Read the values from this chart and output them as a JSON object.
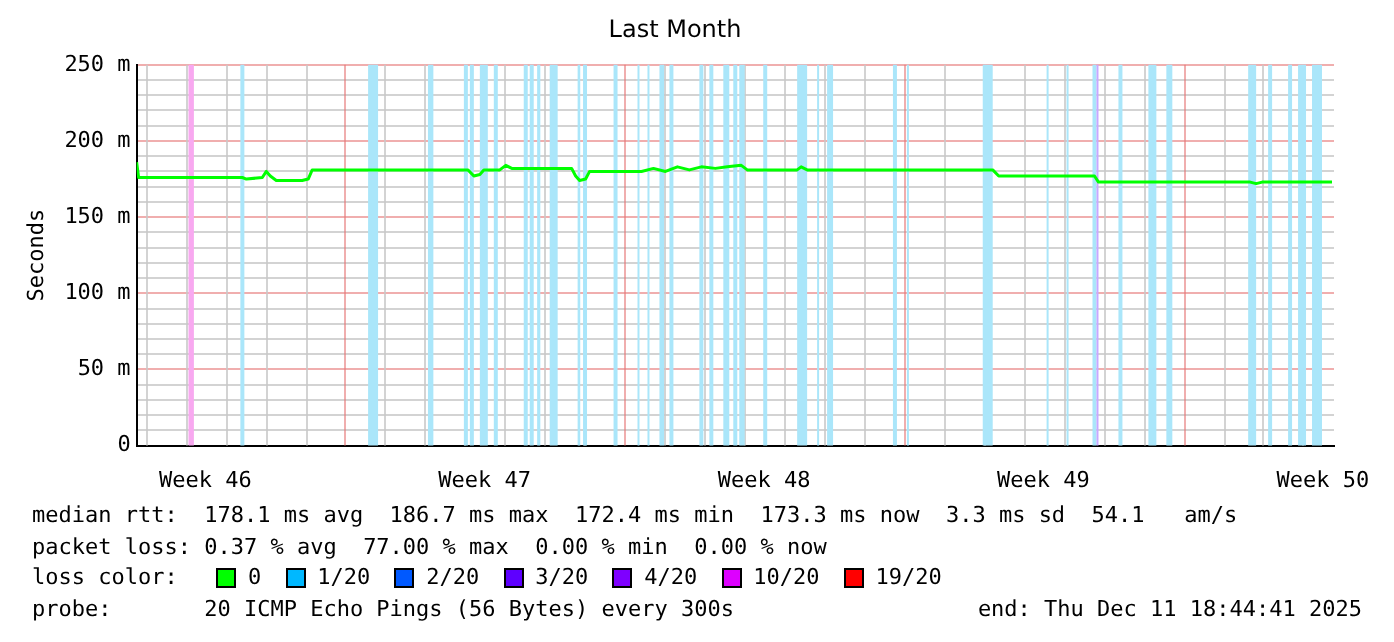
{
  "chart_data": {
    "type": "line",
    "title": "Last Month",
    "ylabel": "Seconds",
    "legend_title": "loss color:",
    "legend": "bottom",
    "grid": true,
    "marker": "none",
    "line_style": "solid",
    "xlim": [
      "2025-11-11T18:44",
      "2025-12-11T18:44"
    ],
    "xticks": [
      {
        "value": "2025-11-13T12:00",
        "label": "Week 46"
      },
      {
        "value": "2025-11-20T12:00",
        "label": "Week 47"
      },
      {
        "value": "2025-11-27T12:00",
        "label": "Week 48"
      },
      {
        "value": "2025-12-04T12:00",
        "label": "Week 49"
      },
      {
        "value": "2025-12-11T12:00",
        "label": "Week 50"
      }
    ],
    "ylim": [
      0,
      250
    ],
    "yticks": [
      0,
      {
        "value": 10,
        "label": null
      },
      {
        "value": 20,
        "label": null
      },
      {
        "value": 30,
        "label": null
      },
      {
        "value": 40,
        "label": null
      },
      {
        "value": 50,
        "label": "50 m"
      },
      {
        "value": 60,
        "label": null
      },
      {
        "value": 70,
        "label": null
      },
      {
        "value": 80,
        "label": null
      },
      {
        "value": 90,
        "label": null
      },
      {
        "value": 100,
        "label": "100 m"
      },
      {
        "value": 110,
        "label": null
      },
      {
        "value": 120,
        "label": null
      },
      {
        "value": 130,
        "label": null
      },
      {
        "value": 140,
        "label": null
      },
      {
        "value": 150,
        "label": "150 m"
      },
      {
        "value": 160,
        "label": null
      },
      {
        "value": 170,
        "label": null
      },
      {
        "value": 180,
        "label": null
      },
      {
        "value": 190,
        "label": null
      },
      {
        "value": 200,
        "label": "200 m"
      },
      {
        "value": 210,
        "label": null
      },
      {
        "value": 220,
        "label": null
      },
      {
        "value": 230,
        "label": null
      },
      {
        "value": 240,
        "label": null
      },
      {
        "value": 250,
        "label": "250 m"
      }
    ],
    "x": [
      "2025-11-11T18:44",
      "2025-11-11T19:56",
      "2025-11-14T10:19",
      "2025-11-14T12:43",
      "2025-11-14T22:19",
      "2025-11-15T00:43",
      "2025-11-15T03:07",
      "2025-11-15T06:43",
      "2025-11-15T22:19",
      "2025-11-16T01:55",
      "2025-11-16T04:19",
      "2025-11-20T01:55",
      "2025-11-20T05:31",
      "2025-11-20T09:07",
      "2025-11-20T11:31",
      "2025-11-20T21:07",
      "2025-11-21T00:43",
      "2025-11-21T04:19",
      "2025-11-22T16:19",
      "2025-11-22T18:43",
      "2025-11-22T21:07",
      "2025-11-23T00:43",
      "2025-11-23T03:07",
      "2025-11-24T10:19",
      "2025-11-24T17:31",
      "2025-11-25T00:43",
      "2025-11-25T07:55",
      "2025-11-25T15:07",
      "2025-11-25T22:19",
      "2025-11-26T06:43",
      "2025-11-26T13:55",
      "2025-11-26T22:19",
      "2025-11-27T01:55",
      "2025-11-28T07:55",
      "2025-11-28T10:19",
      "2025-11-28T13:55",
      "2025-12-03T05:31",
      "2025-12-03T09:07",
      "2025-12-05T18:43",
      "2025-12-05T21:07",
      "2025-12-09T16:19",
      "2025-12-09T19:55",
      "2025-12-09T23:31",
      "2025-12-11T17:31"
    ],
    "series": [
      {
        "name": "0",
        "color": "#00ff00",
        "values": [
          186,
          176,
          176,
          175,
          176,
          180,
          177,
          174,
          174,
          175,
          181,
          181,
          177,
          178,
          181,
          181,
          184,
          182,
          182,
          177,
          174,
          175,
          180,
          180,
          182,
          180,
          183,
          181,
          183,
          182,
          183,
          184,
          181,
          181,
          183,
          181,
          181,
          177,
          177,
          173,
          173,
          172,
          173,
          173
        ]
      },
      {
        "name": "1/20",
        "color": "#00b8ff",
        "values": [
          null,
          null,
          null,
          null,
          null,
          null,
          null,
          null,
          null,
          null,
          null,
          null,
          null,
          null,
          null,
          null,
          null,
          null,
          null,
          null,
          null,
          null,
          null,
          null,
          null,
          null,
          null,
          null,
          null,
          null,
          null,
          null,
          null,
          null,
          null,
          null,
          null,
          null,
          null,
          null,
          null,
          null,
          null,
          null
        ]
      },
      {
        "name": "2/20",
        "color": "#0059ff",
        "values": [
          null,
          null,
          null,
          null,
          null,
          null,
          null,
          null,
          null,
          null,
          null,
          null,
          null,
          null,
          null,
          null,
          null,
          null,
          null,
          null,
          null,
          null,
          null,
          null,
          null,
          null,
          null,
          null,
          null,
          null,
          null,
          null,
          null,
          null,
          null,
          null,
          null,
          null,
          null,
          null,
          null,
          null,
          null,
          null
        ]
      },
      {
        "name": "3/20",
        "color": "#5e00ff",
        "values": [
          null,
          null,
          null,
          null,
          null,
          null,
          null,
          null,
          null,
          null,
          null,
          null,
          null,
          null,
          null,
          null,
          null,
          null,
          null,
          null,
          null,
          null,
          null,
          null,
          null,
          null,
          null,
          null,
          null,
          null,
          null,
          null,
          null,
          null,
          null,
          null,
          null,
          null,
          null,
          null,
          null,
          null,
          null,
          null
        ]
      },
      {
        "name": "4/20",
        "color": "#7e00ff",
        "values": [
          null,
          null,
          null,
          null,
          null,
          null,
          null,
          null,
          null,
          null,
          null,
          null,
          null,
          null,
          null,
          null,
          null,
          null,
          null,
          null,
          null,
          null,
          null,
          null,
          null,
          null,
          null,
          null,
          null,
          null,
          null,
          null,
          null,
          null,
          null,
          null,
          null,
          null,
          null,
          null,
          null,
          null,
          null,
          null
        ]
      },
      {
        "name": "10/20",
        "color": "#dd00ff",
        "values": [
          null,
          null,
          null,
          null,
          null,
          null,
          null,
          null,
          null,
          null,
          null,
          null,
          null,
          null,
          null,
          null,
          null,
          null,
          null,
          null,
          null,
          null,
          null,
          null,
          null,
          null,
          null,
          null,
          null,
          null,
          null,
          null,
          null,
          null,
          null,
          null,
          null,
          null,
          null,
          null,
          null,
          null,
          null,
          null
        ]
      },
      {
        "name": "19/20",
        "color": "#ff0000",
        "values": [
          null,
          null,
          null,
          null,
          null,
          null,
          null,
          null,
          null,
          null,
          null,
          null,
          null,
          null,
          null,
          null,
          null,
          null,
          null,
          null,
          null,
          null,
          null,
          null,
          null,
          null,
          null,
          null,
          null,
          null,
          null,
          null,
          null,
          null,
          null,
          null,
          null,
          null,
          null,
          null,
          null,
          null,
          null,
          null
        ]
      }
    ],
    "bands": [
      {
        "axis": "x",
        "from": "2025-11-13T01:55",
        "to": "2025-11-13T05:10",
        "color": "#f8a8f0"
      },
      {
        "axis": "x",
        "from": "2025-11-14T09:07",
        "to": "2025-11-14T11:31",
        "color": "#aae6fa"
      },
      {
        "axis": "x",
        "from": "2025-11-17T13:55",
        "to": "2025-11-17T19:55",
        "color": "#aae6fa"
      },
      {
        "axis": "x",
        "from": "2025-11-19T01:55",
        "to": "2025-11-19T05:10",
        "color": "#aae6fa"
      },
      {
        "axis": "x",
        "from": "2025-11-19T23:31",
        "to": "2025-11-20T01:55",
        "color": "#aae6fa"
      },
      {
        "axis": "x",
        "from": "2025-11-20T03:07",
        "to": "2025-11-20T05:31",
        "color": "#aae6fa"
      },
      {
        "axis": "x",
        "from": "2025-11-20T09:07",
        "to": "2025-11-20T13:55",
        "color": "#aae6fa"
      },
      {
        "axis": "x",
        "from": "2025-11-20T17:31",
        "to": "2025-11-20T19:55",
        "color": "#aae6fa"
      },
      {
        "axis": "x",
        "from": "2025-11-21T11:31",
        "to": "2025-11-21T13:55",
        "color": "#aae6fa"
      },
      {
        "axis": "x",
        "from": "2025-11-21T15:07",
        "to": "2025-11-21T17:31",
        "color": "#aae6fa"
      },
      {
        "axis": "x",
        "from": "2025-11-21T19:34",
        "to": "2025-11-21T21:29",
        "color": "#aae6fa"
      },
      {
        "axis": "x",
        "from": "2025-11-22T03:07",
        "to": "2025-11-22T07:55",
        "color": "#aae6fa"
      },
      {
        "axis": "x",
        "from": "2025-11-22T19:55",
        "to": "2025-11-22T21:29",
        "color": "#aae6fa"
      },
      {
        "axis": "x",
        "from": "2025-11-22T23:10",
        "to": "2025-11-23T01:34",
        "color": "#aae6fa"
      },
      {
        "axis": "x",
        "from": "2025-11-23T17:31",
        "to": "2025-11-23T19:55",
        "color": "#aae6fa"
      },
      {
        "axis": "x",
        "from": "2025-11-24T07:55",
        "to": "2025-11-24T09:07",
        "color": "#aae6fa"
      },
      {
        "axis": "x",
        "from": "2025-11-24T13:55",
        "to": "2025-11-24T15:07",
        "color": "#aae6fa"
      },
      {
        "axis": "x",
        "from": "2025-11-24T21:07",
        "to": "2025-11-24T23:53",
        "color": "#aae6fa"
      },
      {
        "axis": "x",
        "from": "2025-11-25T03:07",
        "to": "2025-11-25T05:31",
        "color": "#aae6fa"
      },
      {
        "axis": "x",
        "from": "2025-11-25T21:07",
        "to": "2025-11-25T23:31",
        "color": "#aae6fa"
      },
      {
        "axis": "x",
        "from": "2025-11-26T03:07",
        "to": "2025-11-26T05:31",
        "color": "#aae6fa"
      },
      {
        "axis": "x",
        "from": "2025-11-26T11:31",
        "to": "2025-11-26T15:07",
        "color": "#aae6fa"
      },
      {
        "axis": "x",
        "from": "2025-11-26T17:31",
        "to": "2025-11-26T19:55",
        "color": "#aae6fa"
      },
      {
        "axis": "x",
        "from": "2025-11-26T21:07",
        "to": "2025-11-27T00:22",
        "color": "#aae6fa"
      },
      {
        "axis": "x",
        "from": "2025-11-27T11:31",
        "to": "2025-11-27T13:55",
        "color": "#aae6fa"
      },
      {
        "axis": "x",
        "from": "2025-11-28T07:55",
        "to": "2025-11-28T13:55",
        "color": "#aae6fa"
      },
      {
        "axis": "x",
        "from": "2025-11-28T19:55",
        "to": "2025-11-28T21:07",
        "color": "#aae6fa"
      },
      {
        "axis": "x",
        "from": "2025-11-29T01:55",
        "to": "2025-11-29T05:31",
        "color": "#aae6fa"
      },
      {
        "axis": "x",
        "from": "2025-11-30T17:31",
        "to": "2025-11-30T19:55",
        "color": "#aae6fa"
      },
      {
        "axis": "x",
        "from": "2025-12-01T01:55",
        "to": "2025-12-01T03:07",
        "color": "#aae6fa"
      },
      {
        "axis": "x",
        "from": "2025-12-02T23:31",
        "to": "2025-12-03T05:31",
        "color": "#aae6fa"
      },
      {
        "axis": "x",
        "from": "2025-12-04T13:55",
        "to": "2025-12-04T15:07",
        "color": "#aae6fa"
      },
      {
        "axis": "x",
        "from": "2025-12-05T01:55",
        "to": "2025-12-05T03:07",
        "color": "#aae6fa"
      },
      {
        "axis": "x",
        "from": "2025-12-05T17:31",
        "to": "2025-12-05T19:55",
        "color": "#aae6fa"
      },
      {
        "axis": "x",
        "from": "2025-12-05T19:55",
        "to": "2025-12-05T21:07",
        "color": "#c8a8ff"
      },
      {
        "axis": "x",
        "from": "2025-12-06T09:07",
        "to": "2025-12-06T11:31",
        "color": "#aae6fa"
      },
      {
        "axis": "x",
        "from": "2025-12-07T03:07",
        "to": "2025-12-07T07:55",
        "color": "#aae6fa"
      },
      {
        "axis": "x",
        "from": "2025-12-07T13:55",
        "to": "2025-12-07T17:31",
        "color": "#aae6fa"
      },
      {
        "axis": "x",
        "from": "2025-12-09T15:07",
        "to": "2025-12-09T19:55",
        "color": "#aae6fa"
      },
      {
        "axis": "x",
        "from": "2025-12-10T03:07",
        "to": "2025-12-10T05:31",
        "color": "#aae6fa"
      },
      {
        "axis": "x",
        "from": "2025-12-10T15:07",
        "to": "2025-12-10T17:31",
        "color": "#aae6fa"
      },
      {
        "axis": "x",
        "from": "2025-12-10T21:07",
        "to": "2025-12-11T01:55",
        "color": "#aae6fa"
      },
      {
        "axis": "x",
        "from": "2025-12-11T05:31",
        "to": "2025-12-11T11:31",
        "color": "#aae6fa"
      }
    ],
    "annotations": [
      "median rtt:  178.1 ms avg  186.7 ms max  172.4 ms min  173.3 ms now  3.3 ms sd  54.1   am/s",
      "packet loss: 0.37 % avg  77.00 % max  0.00 % min  0.00 % now",
      "probe:       20 ICMP Echo Pings (56 Bytes) every 300s",
      "end: Thu Dec 11 18:44:41 2025"
    ]
  }
}
